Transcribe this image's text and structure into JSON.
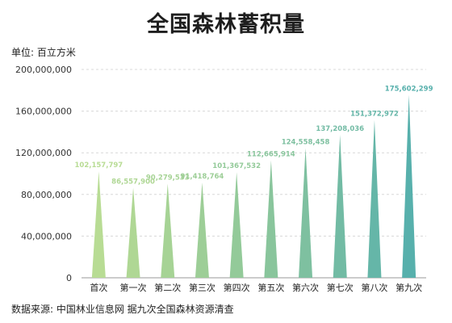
{
  "chart_data": {
    "type": "bar",
    "title": "全国森林蓄积量",
    "unit_label": "单位: 百立方米",
    "source": "数据来源: 中国林业信息网   据九次全国森林资源清查",
    "categories": [
      "首次",
      "第一次",
      "第二次",
      "第三次",
      "第四次",
      "第五次",
      "第六次",
      "第七次",
      "第八次",
      "第九次"
    ],
    "values": [
      102157797,
      86557900,
      90279533,
      91418764,
      101367532,
      112665914,
      124558458,
      137208036,
      151372972,
      175602299
    ],
    "data_labels": [
      "102,157,797",
      "86,557,900",
      "90,279,533",
      "91,418,764",
      "101,367,532",
      "112,665,914",
      "124,558,458",
      "137,208,036",
      "151,372,972",
      "175,602,299"
    ],
    "ylim": [
      0,
      200000000
    ],
    "yticks": [
      0,
      40000000,
      80000000,
      120000000,
      160000000,
      200000000
    ],
    "ytick_labels": [
      "0",
      "40,000,000",
      "80,000,000",
      "120,000,000",
      "160,000,000",
      "200,000,000"
    ],
    "grid": true,
    "colors": [
      "#b8dc94",
      "#afd794",
      "#a6d395",
      "#9dce97",
      "#93ca99",
      "#89c59c",
      "#7ec0a0",
      "#72bba4",
      "#65b6a8",
      "#57b0ac"
    ]
  }
}
